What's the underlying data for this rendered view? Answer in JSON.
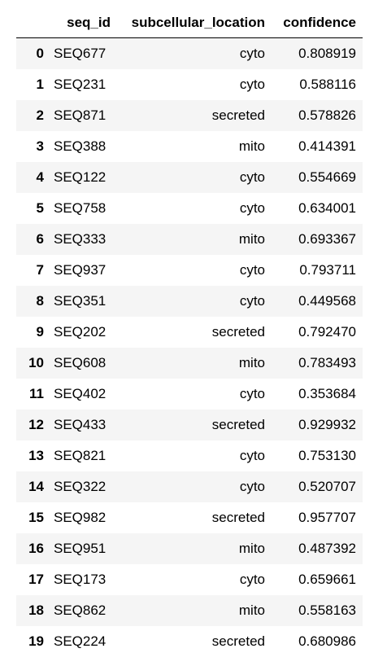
{
  "table": {
    "columns": [
      "",
      "seq_id",
      "subcellular_location",
      "confidence"
    ],
    "rows": [
      {
        "index": "0",
        "seq_id": "SEQ677",
        "subcellular_location": "cyto",
        "confidence": "0.808919"
      },
      {
        "index": "1",
        "seq_id": "SEQ231",
        "subcellular_location": "cyto",
        "confidence": "0.588116"
      },
      {
        "index": "2",
        "seq_id": "SEQ871",
        "subcellular_location": "secreted",
        "confidence": "0.578826"
      },
      {
        "index": "3",
        "seq_id": "SEQ388",
        "subcellular_location": "mito",
        "confidence": "0.414391"
      },
      {
        "index": "4",
        "seq_id": "SEQ122",
        "subcellular_location": "cyto",
        "confidence": "0.554669"
      },
      {
        "index": "5",
        "seq_id": "SEQ758",
        "subcellular_location": "cyto",
        "confidence": "0.634001"
      },
      {
        "index": "6",
        "seq_id": "SEQ333",
        "subcellular_location": "mito",
        "confidence": "0.693367"
      },
      {
        "index": "7",
        "seq_id": "SEQ937",
        "subcellular_location": "cyto",
        "confidence": "0.793711"
      },
      {
        "index": "8",
        "seq_id": "SEQ351",
        "subcellular_location": "cyto",
        "confidence": "0.449568"
      },
      {
        "index": "9",
        "seq_id": "SEQ202",
        "subcellular_location": "secreted",
        "confidence": "0.792470"
      },
      {
        "index": "10",
        "seq_id": "SEQ608",
        "subcellular_location": "mito",
        "confidence": "0.783493"
      },
      {
        "index": "11",
        "seq_id": "SEQ402",
        "subcellular_location": "cyto",
        "confidence": "0.353684"
      },
      {
        "index": "12",
        "seq_id": "SEQ433",
        "subcellular_location": "secreted",
        "confidence": "0.929932"
      },
      {
        "index": "13",
        "seq_id": "SEQ821",
        "subcellular_location": "cyto",
        "confidence": "0.753130"
      },
      {
        "index": "14",
        "seq_id": "SEQ322",
        "subcellular_location": "cyto",
        "confidence": "0.520707"
      },
      {
        "index": "15",
        "seq_id": "SEQ982",
        "subcellular_location": "secreted",
        "confidence": "0.957707"
      },
      {
        "index": "16",
        "seq_id": "SEQ951",
        "subcellular_location": "mito",
        "confidence": "0.487392"
      },
      {
        "index": "17",
        "seq_id": "SEQ173",
        "subcellular_location": "cyto",
        "confidence": "0.659661"
      },
      {
        "index": "18",
        "seq_id": "SEQ862",
        "subcellular_location": "mito",
        "confidence": "0.558163"
      },
      {
        "index": "19",
        "seq_id": "SEQ224",
        "subcellular_location": "secreted",
        "confidence": "0.680986"
      }
    ]
  },
  "colors": {
    "row_stripe": "#f5f5f5",
    "row_plain": "#ffffff",
    "header_rule": "#000000"
  }
}
